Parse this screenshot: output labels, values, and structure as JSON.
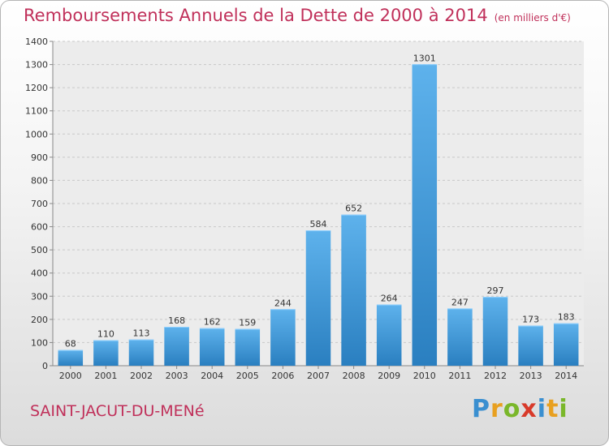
{
  "header": {
    "title": "Remboursements Annuels de la Dette de 2000 à 2014",
    "unit": "(en milliers d'€)"
  },
  "footer": {
    "commune": "SAINT-JACUT-DU-MENé",
    "logo_text": "Proxiti"
  },
  "colors": {
    "title": "#c0305a",
    "bar_light": "#5eb2ec",
    "bar_dark": "#2a7fc0",
    "logo": [
      "#3a8fd0",
      "#e8a020",
      "#7ab72a",
      "#d83a2a",
      "#3a8fd0",
      "#e8a020",
      "#7ab72a"
    ]
  },
  "chart_data": {
    "type": "bar",
    "categories": [
      "2000",
      "2001",
      "2002",
      "2003",
      "2004",
      "2005",
      "2006",
      "2007",
      "2008",
      "2009",
      "2010",
      "2011",
      "2012",
      "2013",
      "2014"
    ],
    "values": [
      68,
      110,
      113,
      168,
      162,
      159,
      244,
      584,
      652,
      264,
      1301,
      247,
      297,
      173,
      183
    ],
    "ylim": [
      0,
      1400
    ],
    "yticks": [
      0,
      100,
      200,
      300,
      400,
      500,
      600,
      700,
      800,
      900,
      1000,
      1100,
      1200,
      1300,
      1400
    ],
    "grid": true
  }
}
